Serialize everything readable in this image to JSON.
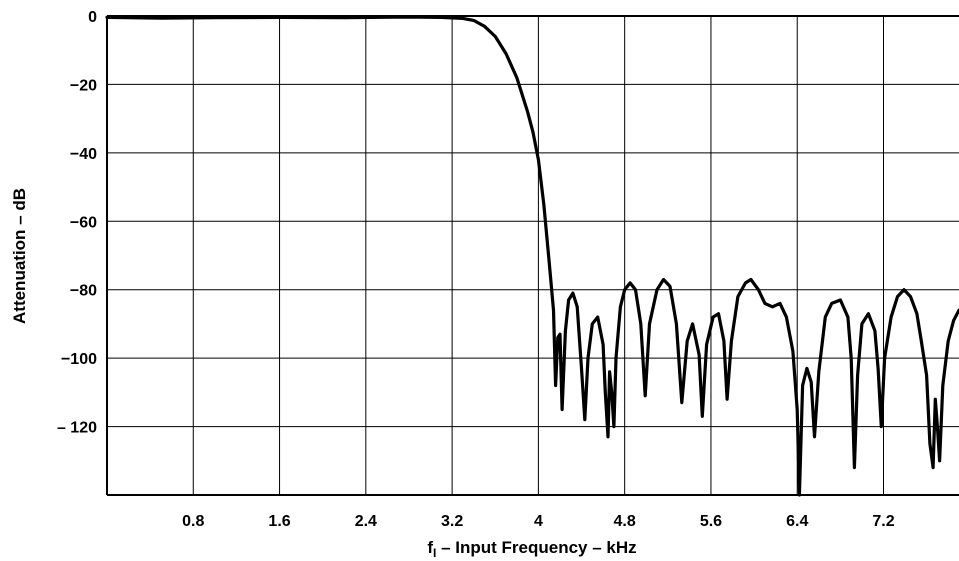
{
  "chart_data": {
    "type": "line",
    "title": "",
    "xlabel": {
      "main": "f",
      "sub": "I",
      "rest": " – Input Frequency – kHz"
    },
    "ylabel": "Attenuation – dB",
    "xlim": [
      0,
      7.9
    ],
    "ylim": [
      -140,
      0
    ],
    "x_ticks": [
      {
        "value": 0.8,
        "label": "0.8"
      },
      {
        "value": 1.6,
        "label": "1.6"
      },
      {
        "value": 2.4,
        "label": "2.4"
      },
      {
        "value": 3.2,
        "label": "3.2"
      },
      {
        "value": 4.0,
        "label": "4"
      },
      {
        "value": 4.8,
        "label": "4.8"
      },
      {
        "value": 5.6,
        "label": "5.6"
      },
      {
        "value": 6.4,
        "label": "6.4"
      },
      {
        "value": 7.2,
        "label": "7.2"
      }
    ],
    "y_ticks": [
      {
        "value": 0,
        "label": "0"
      },
      {
        "value": -20,
        "label": "−20"
      },
      {
        "value": -40,
        "label": "−40"
      },
      {
        "value": -60,
        "label": "−60"
      },
      {
        "value": -80,
        "label": "−80"
      },
      {
        "value": -100,
        "label": "−100"
      },
      {
        "value": -120,
        "label": "– 120"
      }
    ],
    "grid": true,
    "series": [
      {
        "color": "#000000",
        "points": [
          [
            0.0,
            -0.4
          ],
          [
            0.5,
            -0.6
          ],
          [
            1.0,
            -0.5
          ],
          [
            1.6,
            -0.4
          ],
          [
            2.2,
            -0.5
          ],
          [
            2.8,
            -0.3
          ],
          [
            3.1,
            -0.4
          ],
          [
            3.3,
            -0.7
          ],
          [
            3.4,
            -1.3
          ],
          [
            3.5,
            -3
          ],
          [
            3.6,
            -6
          ],
          [
            3.7,
            -11
          ],
          [
            3.8,
            -18
          ],
          [
            3.9,
            -28
          ],
          [
            3.95,
            -34
          ],
          [
            4.0,
            -42
          ],
          [
            4.05,
            -55
          ],
          [
            4.1,
            -72
          ],
          [
            4.14,
            -86
          ],
          [
            4.16,
            -108
          ],
          [
            4.18,
            -94
          ],
          [
            4.2,
            -93
          ],
          [
            4.22,
            -115
          ],
          [
            4.25,
            -92
          ],
          [
            4.28,
            -83
          ],
          [
            4.32,
            -81
          ],
          [
            4.36,
            -85
          ],
          [
            4.4,
            -103
          ],
          [
            4.43,
            -118
          ],
          [
            4.46,
            -100
          ],
          [
            4.5,
            -90
          ],
          [
            4.55,
            -88
          ],
          [
            4.6,
            -96
          ],
          [
            4.62,
            -110
          ],
          [
            4.645,
            -123
          ],
          [
            4.66,
            -104
          ],
          [
            4.68,
            -110
          ],
          [
            4.7,
            -120
          ],
          [
            4.72,
            -100
          ],
          [
            4.76,
            -85
          ],
          [
            4.8,
            -80
          ],
          [
            4.85,
            -78
          ],
          [
            4.9,
            -80
          ],
          [
            4.95,
            -90
          ],
          [
            4.99,
            -111
          ],
          [
            5.03,
            -90
          ],
          [
            5.1,
            -80
          ],
          [
            5.16,
            -77
          ],
          [
            5.22,
            -79
          ],
          [
            5.28,
            -90
          ],
          [
            5.33,
            -113
          ],
          [
            5.38,
            -95
          ],
          [
            5.43,
            -90
          ],
          [
            5.49,
            -99
          ],
          [
            5.52,
            -117
          ],
          [
            5.56,
            -96
          ],
          [
            5.62,
            -88
          ],
          [
            5.67,
            -87
          ],
          [
            5.72,
            -95
          ],
          [
            5.75,
            -112
          ],
          [
            5.79,
            -95
          ],
          [
            5.85,
            -82
          ],
          [
            5.92,
            -78
          ],
          [
            5.97,
            -77
          ],
          [
            6.04,
            -80
          ],
          [
            6.1,
            -84
          ],
          [
            6.17,
            -85
          ],
          [
            6.24,
            -84
          ],
          [
            6.3,
            -88
          ],
          [
            6.36,
            -98
          ],
          [
            6.4,
            -115
          ],
          [
            6.42,
            -140
          ],
          [
            6.45,
            -108
          ],
          [
            6.49,
            -103
          ],
          [
            6.53,
            -107
          ],
          [
            6.56,
            -123
          ],
          [
            6.6,
            -104
          ],
          [
            6.66,
            -88
          ],
          [
            6.72,
            -84
          ],
          [
            6.8,
            -83
          ],
          [
            6.87,
            -88
          ],
          [
            6.9,
            -100
          ],
          [
            6.93,
            -132
          ],
          [
            6.96,
            -105
          ],
          [
            7.0,
            -90
          ],
          [
            7.06,
            -87
          ],
          [
            7.12,
            -92
          ],
          [
            7.15,
            -103
          ],
          [
            7.18,
            -120
          ],
          [
            7.21,
            -100
          ],
          [
            7.27,
            -88
          ],
          [
            7.33,
            -82
          ],
          [
            7.39,
            -80
          ],
          [
            7.45,
            -82
          ],
          [
            7.51,
            -87
          ],
          [
            7.55,
            -95
          ],
          [
            7.6,
            -105
          ],
          [
            7.63,
            -125
          ],
          [
            7.66,
            -132
          ],
          [
            7.68,
            -112
          ],
          [
            7.7,
            -120
          ],
          [
            7.72,
            -130
          ],
          [
            7.75,
            -108
          ],
          [
            7.8,
            -95
          ],
          [
            7.85,
            -89
          ],
          [
            7.9,
            -86
          ]
        ]
      }
    ]
  }
}
